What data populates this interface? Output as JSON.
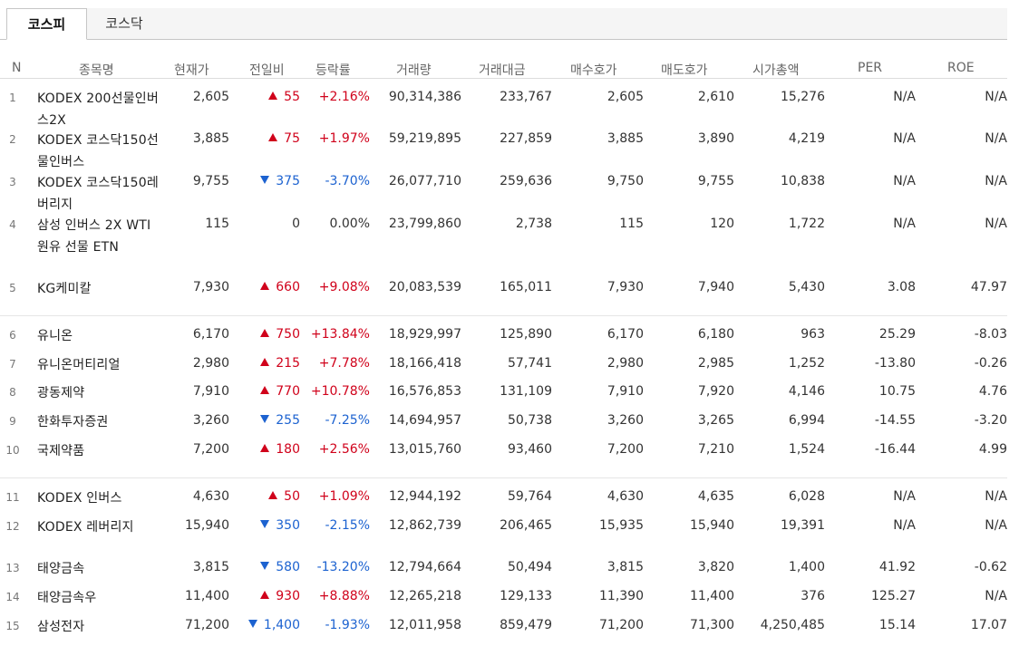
{
  "tabs": [
    "코스피",
    "코스닥"
  ],
  "columns": {
    "n": "N",
    "name": "종목명",
    "price": "현재가",
    "change": "전일비",
    "rate": "등락률",
    "volume": "거래량",
    "amount": "거래대금",
    "bid": "매수호가",
    "ask": "매도호가",
    "market_cap": "시가총액",
    "per": "PER",
    "roe": "ROE"
  },
  "colors": {
    "up": "#d0021b",
    "down": "#1c62d0"
  },
  "rows": [
    {
      "n": "1",
      "name": "KODEX 200선물인버스2X",
      "price": "2,605",
      "dir": "up",
      "change": "55",
      "rate": "+2.16%",
      "volume": "90,314,386",
      "amount": "233,767",
      "bid": "2,605",
      "ask": "2,610",
      "cap": "15,276",
      "per": "N/A",
      "roe": "N/A"
    },
    {
      "n": "2",
      "name": "KODEX 코스닥150선물인버스",
      "price": "3,885",
      "dir": "up",
      "change": "75",
      "rate": "+1.97%",
      "volume": "59,219,895",
      "amount": "227,859",
      "bid": "3,885",
      "ask": "3,890",
      "cap": "4,219",
      "per": "N/A",
      "roe": "N/A"
    },
    {
      "n": "3",
      "name": "KODEX 코스닥150레버리지",
      "price": "9,755",
      "dir": "down",
      "change": "375",
      "rate": "-3.70%",
      "volume": "26,077,710",
      "amount": "259,636",
      "bid": "9,750",
      "ask": "9,755",
      "cap": "10,838",
      "per": "N/A",
      "roe": "N/A"
    },
    {
      "n": "4",
      "name": "삼성 인버스 2X WTI원유 선물 ETN",
      "price": "115",
      "dir": "none",
      "change": "0",
      "rate": "0.00%",
      "volume": "23,799,860",
      "amount": "2,738",
      "bid": "115",
      "ask": "120",
      "cap": "1,722",
      "per": "N/A",
      "roe": "N/A"
    },
    {
      "n": "5",
      "name": "KG케미칼",
      "price": "7,930",
      "dir": "up",
      "change": "660",
      "rate": "+9.08%",
      "volume": "20,083,539",
      "amount": "165,011",
      "bid": "7,930",
      "ask": "7,940",
      "cap": "5,430",
      "per": "3.08",
      "roe": "47.97"
    },
    {
      "n": "6",
      "name": "유니온",
      "price": "6,170",
      "dir": "up",
      "change": "750",
      "rate": "+13.84%",
      "volume": "18,929,997",
      "amount": "125,890",
      "bid": "6,170",
      "ask": "6,180",
      "cap": "963",
      "per": "25.29",
      "roe": "-8.03"
    },
    {
      "n": "7",
      "name": "유니온머티리얼",
      "price": "2,980",
      "dir": "up",
      "change": "215",
      "rate": "+7.78%",
      "volume": "18,166,418",
      "amount": "57,741",
      "bid": "2,980",
      "ask": "2,985",
      "cap": "1,252",
      "per": "-13.80",
      "roe": "-0.26"
    },
    {
      "n": "8",
      "name": "광동제약",
      "price": "7,910",
      "dir": "up",
      "change": "770",
      "rate": "+10.78%",
      "volume": "16,576,853",
      "amount": "131,109",
      "bid": "7,910",
      "ask": "7,920",
      "cap": "4,146",
      "per": "10.75",
      "roe": "4.76"
    },
    {
      "n": "9",
      "name": "한화투자증권",
      "price": "3,260",
      "dir": "down",
      "change": "255",
      "rate": "-7.25%",
      "volume": "14,694,957",
      "amount": "50,738",
      "bid": "3,260",
      "ask": "3,265",
      "cap": "6,994",
      "per": "-14.55",
      "roe": "-3.20"
    },
    {
      "n": "10",
      "name": "국제약품",
      "price": "7,200",
      "dir": "up",
      "change": "180",
      "rate": "+2.56%",
      "volume": "13,015,760",
      "amount": "93,460",
      "bid": "7,200",
      "ask": "7,210",
      "cap": "1,524",
      "per": "-16.44",
      "roe": "4.99"
    },
    {
      "n": "11",
      "name": "KODEX 인버스",
      "price": "4,630",
      "dir": "up",
      "change": "50",
      "rate": "+1.09%",
      "volume": "12,944,192",
      "amount": "59,764",
      "bid": "4,630",
      "ask": "4,635",
      "cap": "6,028",
      "per": "N/A",
      "roe": "N/A"
    },
    {
      "n": "12",
      "name": "KODEX 레버리지",
      "price": "15,940",
      "dir": "down",
      "change": "350",
      "rate": "-2.15%",
      "volume": "12,862,739",
      "amount": "206,465",
      "bid": "15,935",
      "ask": "15,940",
      "cap": "19,391",
      "per": "N/A",
      "roe": "N/A"
    },
    {
      "n": "13",
      "name": "태양금속",
      "price": "3,815",
      "dir": "down",
      "change": "580",
      "rate": "-13.20%",
      "volume": "12,794,664",
      "amount": "50,494",
      "bid": "3,815",
      "ask": "3,820",
      "cap": "1,400",
      "per": "41.92",
      "roe": "-0.62"
    },
    {
      "n": "14",
      "name": "태양금속우",
      "price": "11,400",
      "dir": "up",
      "change": "930",
      "rate": "+8.88%",
      "volume": "12,265,218",
      "amount": "129,133",
      "bid": "11,390",
      "ask": "11,400",
      "cap": "376",
      "per": "125.27",
      "roe": "N/A"
    },
    {
      "n": "15",
      "name": "삼성전자",
      "price": "71,200",
      "dir": "down",
      "change": "1,400",
      "rate": "-1.93%",
      "volume": "12,011,958",
      "amount": "859,479",
      "bid": "71,200",
      "ask": "71,300",
      "cap": "4,250,485",
      "per": "15.14",
      "roe": "17.07"
    }
  ]
}
